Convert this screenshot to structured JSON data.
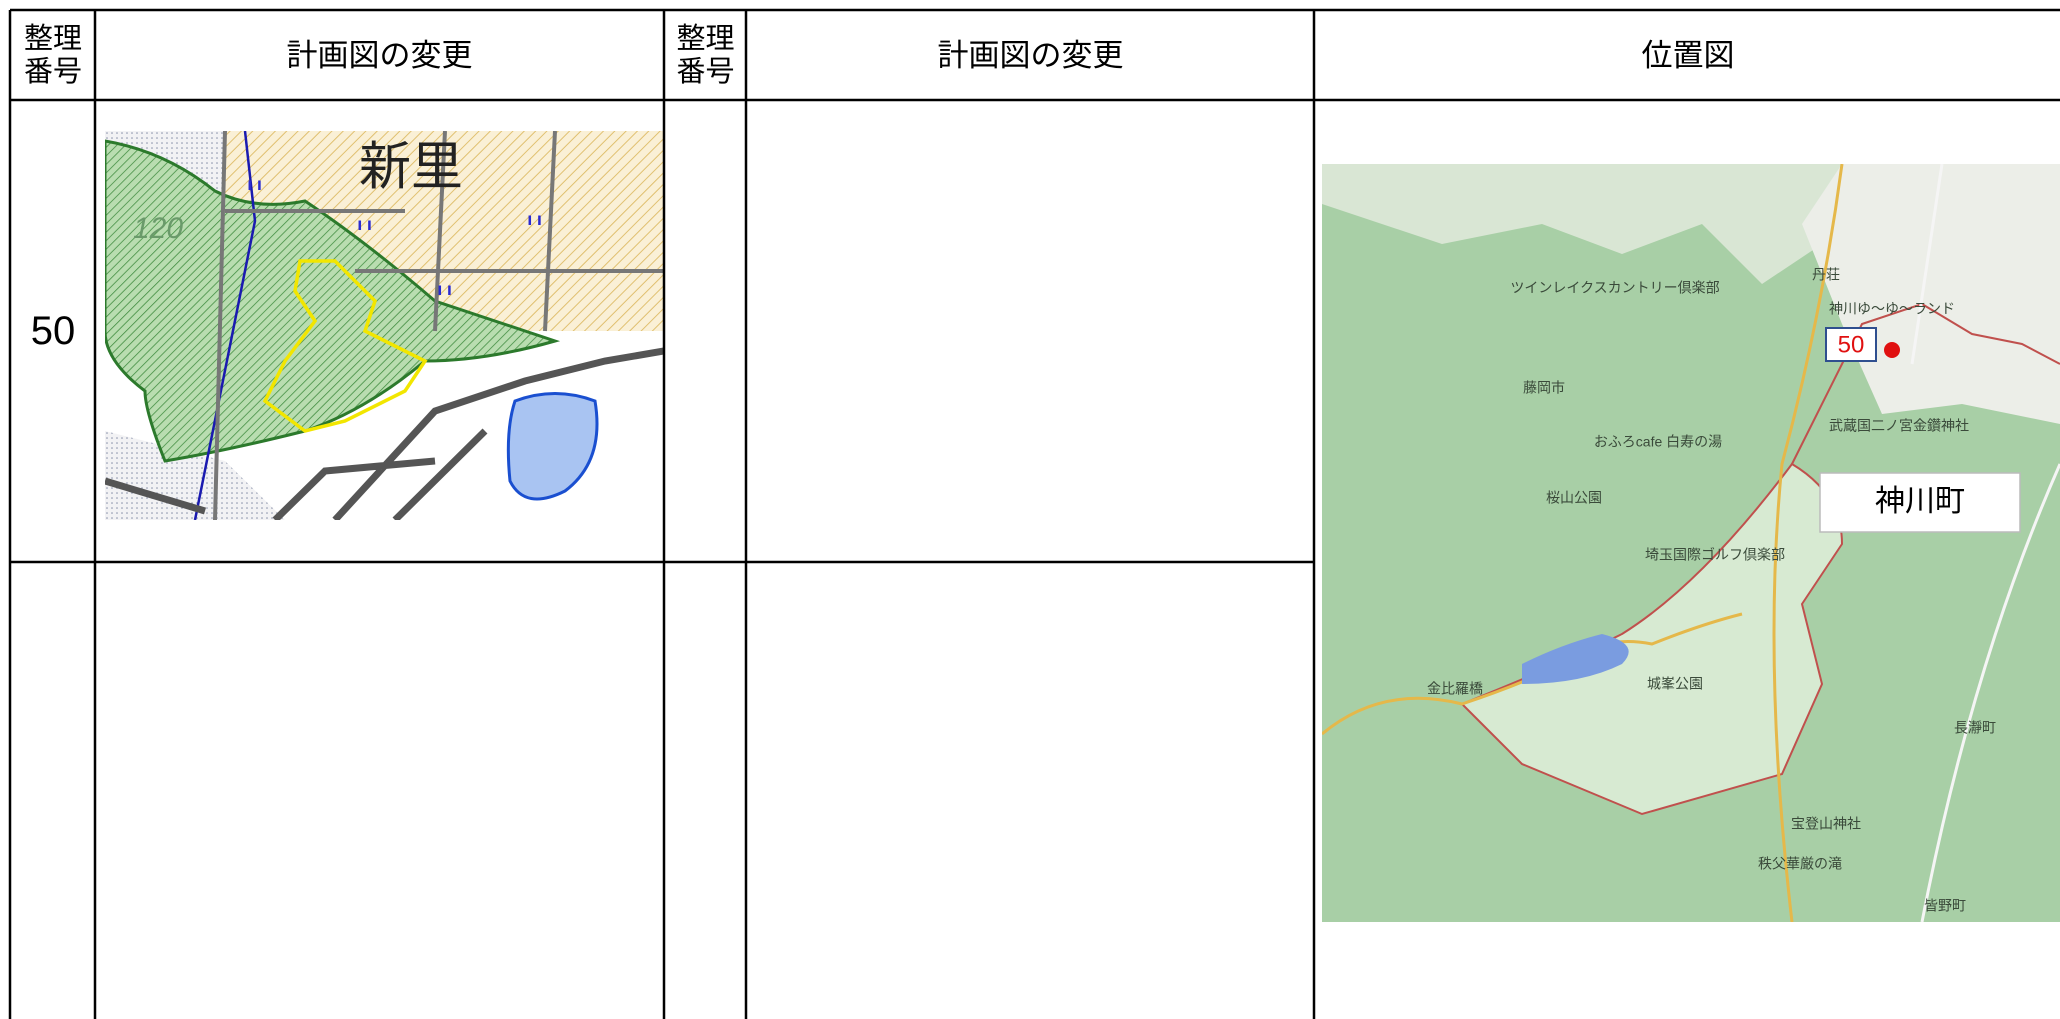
{
  "table": {
    "headers": [
      "整理番号",
      "計画図の変更",
      "整理番号",
      "計画図の変更",
      "位置図"
    ],
    "rows": [
      {
        "number": "50"
      }
    ]
  },
  "plan_map": {
    "labels": [
      "新里",
      "120"
    ]
  },
  "location_map": {
    "marker": "50",
    "area_label": "神川町",
    "labels": [
      "藤岡市",
      "ツインレイクスカントリー倶楽部",
      "神川ゆ～ゆ～ランド",
      "丹荘",
      "武蔵国二ノ宮金鑽神社",
      "おふろcafe 白寿の湯",
      "桜山公園",
      "埼玉国際ゴルフ倶楽部",
      "城峯公園",
      "金比羅橋",
      "長瀞町",
      "宝登山神社",
      "秩父華厳の滝",
      "皆野町"
    ]
  }
}
